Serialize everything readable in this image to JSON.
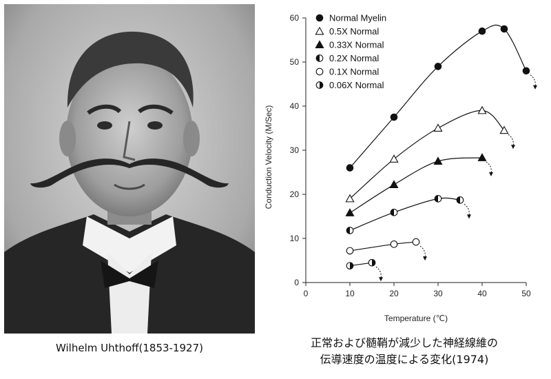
{
  "portrait": {
    "caption": "Wilhelm Uhthoff(1853-1927)"
  },
  "chart_caption": {
    "line1": "正常および髄鞘が減少した神経線維の",
    "line2": "伝導速度の温度による変化(1974)"
  },
  "chart_data": {
    "type": "line",
    "xlabel": "Temperature (℃)",
    "ylabel": "Conduction Velocity (M/Sec)",
    "xlim": [
      0,
      50
    ],
    "ylim": [
      0,
      60
    ],
    "xticks": [
      0,
      10,
      20,
      30,
      40,
      50
    ],
    "yticks": [
      0,
      10,
      20,
      30,
      40,
      50,
      60
    ],
    "grid": false,
    "legend": "top-left",
    "series": [
      {
        "name": "Normal Myelin",
        "marker": "circle-filled",
        "x": [
          10,
          20,
          30,
          40,
          45,
          50
        ],
        "y": [
          26,
          37.5,
          49,
          57,
          57.5,
          48
        ],
        "drop_arrow_at": 50
      },
      {
        "name": "0.5X Normal",
        "marker": "triangle-open",
        "x": [
          10,
          20,
          30,
          40,
          45
        ],
        "y": [
          19,
          28,
          35,
          39,
          34.5
        ],
        "drop_arrow_at": 45
      },
      {
        "name": "0.33X Normal",
        "marker": "triangle-filled",
        "x": [
          10,
          20,
          30,
          40
        ],
        "y": [
          15.8,
          22.2,
          27.5,
          28.3
        ],
        "drop_arrow_at": 40
      },
      {
        "name": "0.2X Normal",
        "marker": "circle-half-left",
        "x": [
          10,
          20,
          30,
          35
        ],
        "y": [
          11.8,
          15.9,
          19,
          18.7
        ],
        "drop_arrow_at": 35
      },
      {
        "name": "0.1X Normal",
        "marker": "circle-open",
        "x": [
          10,
          20,
          25
        ],
        "y": [
          7.2,
          8.7,
          9.2
        ],
        "drop_arrow_at": 25
      },
      {
        "name": "0.06X Normal",
        "marker": "circle-half-right",
        "x": [
          10,
          15
        ],
        "y": [
          3.8,
          4.5
        ],
        "drop_arrow_at": 15
      }
    ]
  }
}
